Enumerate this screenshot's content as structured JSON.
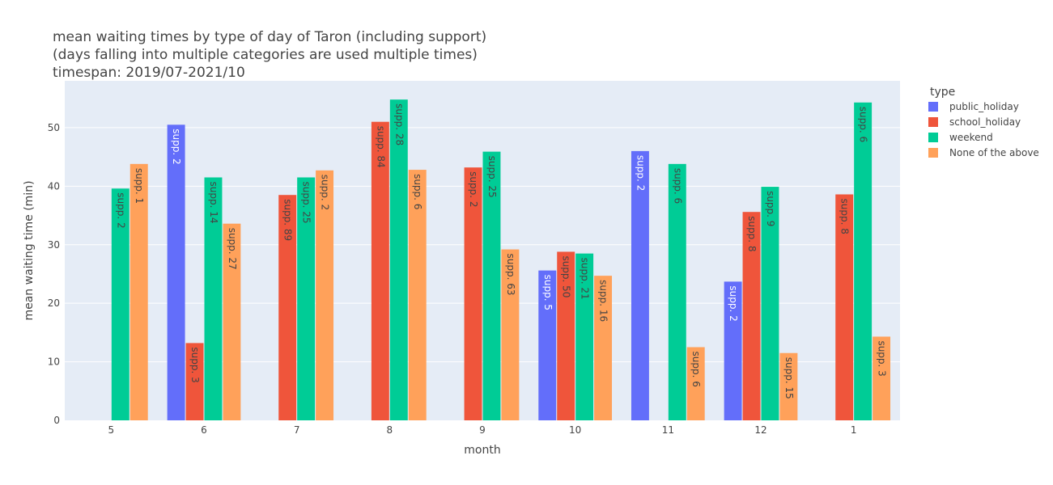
{
  "chart_data": {
    "type": "bar",
    "title_lines": [
      "mean waiting times by type of day of Taron (including support)",
      "(days falling into multiple categories are used multiple times)",
      "timespan: 2019/07-2021/10"
    ],
    "xlabel": "month",
    "ylabel": "mean waiting time (min)",
    "ylim": [
      0,
      58
    ],
    "yticks": [
      0,
      10,
      20,
      30,
      40,
      50
    ],
    "categories": [
      "5",
      "6",
      "7",
      "8",
      "9",
      "10",
      "11",
      "12",
      "1"
    ],
    "grid": true,
    "legend": {
      "title": "type",
      "placement": "right"
    },
    "background": "#e5ecf6",
    "series": [
      {
        "name": "public_holiday",
        "color": "#636efa",
        "label_color": "#ffffff",
        "values": [
          null,
          50.5,
          null,
          null,
          null,
          25.6,
          46.0,
          23.7,
          null
        ],
        "labels": [
          null,
          "supp. 2",
          null,
          null,
          null,
          "supp. 5",
          "supp. 2",
          "supp. 2",
          null
        ]
      },
      {
        "name": "school_holiday",
        "color": "#ef553b",
        "label_color": "#444444",
        "values": [
          null,
          13.2,
          38.5,
          51.0,
          43.2,
          28.8,
          null,
          35.6,
          38.6
        ],
        "labels": [
          null,
          "supp. 3",
          "supp. 89",
          "supp. 84",
          "supp. 2",
          "supp. 50",
          null,
          "supp. 8",
          "supp. 8"
        ]
      },
      {
        "name": "weekend",
        "color": "#00cc96",
        "label_color": "#444444",
        "values": [
          39.6,
          41.5,
          41.5,
          54.8,
          45.9,
          28.5,
          43.8,
          39.9,
          54.3
        ],
        "labels": [
          "supp. 2",
          "supp. 14",
          "supp. 25",
          "supp. 28",
          "supp. 25",
          "supp. 21",
          "supp. 6",
          "supp. 9",
          "supp. 6"
        ]
      },
      {
        "name": "None of the above",
        "color": "#ffa15a",
        "label_color": "#444444",
        "values": [
          43.8,
          33.6,
          42.7,
          42.8,
          29.2,
          24.7,
          12.5,
          11.5,
          14.3
        ],
        "labels": [
          "supp. 1",
          "supp. 27",
          "supp. 2",
          "supp. 6",
          "supp. 63",
          "supp. 16",
          "supp. 6",
          "supp. 15",
          "supp. 3"
        ]
      }
    ]
  }
}
